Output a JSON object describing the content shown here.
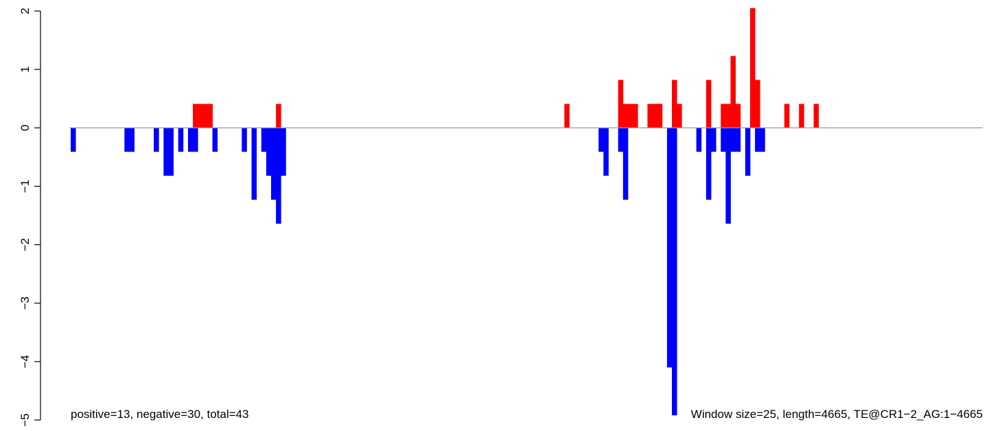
{
  "chart_data": {
    "type": "bar",
    "title": "",
    "xlabel": "",
    "ylabel": "",
    "ylim": [
      -5,
      2
    ],
    "y_ticks": [
      "2",
      "1",
      "0",
      "−1",
      "−2",
      "−3",
      "−4",
      "−5"
    ],
    "y_tick_values": [
      2,
      1,
      0,
      -1,
      -2,
      -3,
      -4,
      -5
    ],
    "x_axis_visible": false,
    "baseline": 0,
    "window_size_bp": 25,
    "sequence_length_bp": 4665,
    "colors": {
      "positive": "#ff0000",
      "negative": "#0000ff",
      "baseline": "#999999"
    },
    "series": [
      {
        "name": "positive",
        "color": "#ff0000",
        "points": [
          {
            "x": 625,
            "y": 0.41
          },
          {
            "x": 650,
            "y": 0.41
          },
          {
            "x": 675,
            "y": 0.41
          },
          {
            "x": 700,
            "y": 0.41
          },
          {
            "x": 1050,
            "y": 0.41
          },
          {
            "x": 2525,
            "y": 0.41
          },
          {
            "x": 2800,
            "y": 0.82
          },
          {
            "x": 2825,
            "y": 0.41
          },
          {
            "x": 2850,
            "y": 0.41
          },
          {
            "x": 2875,
            "y": 0.41
          },
          {
            "x": 2950,
            "y": 0.41
          },
          {
            "x": 2975,
            "y": 0.41
          },
          {
            "x": 3000,
            "y": 0.41
          },
          {
            "x": 3075,
            "y": 0.82
          },
          {
            "x": 3100,
            "y": 0.41
          },
          {
            "x": 3250,
            "y": 0.82
          },
          {
            "x": 3325,
            "y": 0.41
          },
          {
            "x": 3350,
            "y": 0.41
          },
          {
            "x": 3375,
            "y": 1.23
          },
          {
            "x": 3400,
            "y": 0.41
          },
          {
            "x": 3475,
            "y": 2.05
          },
          {
            "x": 3500,
            "y": 0.82
          },
          {
            "x": 3650,
            "y": 0.41
          },
          {
            "x": 3725,
            "y": 0.41
          },
          {
            "x": 3800,
            "y": 0.41
          }
        ]
      },
      {
        "name": "negative",
        "color": "#0000ff",
        "points": [
          {
            "x": 0,
            "y": -0.41
          },
          {
            "x": 275,
            "y": -0.41
          },
          {
            "x": 300,
            "y": -0.41
          },
          {
            "x": 425,
            "y": -0.41
          },
          {
            "x": 475,
            "y": -0.82
          },
          {
            "x": 500,
            "y": -0.82
          },
          {
            "x": 550,
            "y": -0.41
          },
          {
            "x": 600,
            "y": -0.41
          },
          {
            "x": 625,
            "y": -0.41
          },
          {
            "x": 725,
            "y": -0.41
          },
          {
            "x": 875,
            "y": -0.41
          },
          {
            "x": 925,
            "y": -1.23
          },
          {
            "x": 975,
            "y": -0.41
          },
          {
            "x": 1000,
            "y": -0.82
          },
          {
            "x": 1025,
            "y": -1.23
          },
          {
            "x": 1050,
            "y": -1.64
          },
          {
            "x": 1075,
            "y": -0.82
          },
          {
            "x": 2700,
            "y": -0.41
          },
          {
            "x": 2725,
            "y": -0.82
          },
          {
            "x": 2800,
            "y": -0.41
          },
          {
            "x": 2825,
            "y": -1.23
          },
          {
            "x": 3050,
            "y": -4.1
          },
          {
            "x": 3075,
            "y": -4.92
          },
          {
            "x": 3200,
            "y": -0.41
          },
          {
            "x": 3250,
            "y": -1.23
          },
          {
            "x": 3275,
            "y": -0.41
          },
          {
            "x": 3325,
            "y": -0.41
          },
          {
            "x": 3350,
            "y": -1.64
          },
          {
            "x": 3375,
            "y": -0.41
          },
          {
            "x": 3400,
            "y": -0.41
          },
          {
            "x": 3450,
            "y": -0.82
          },
          {
            "x": 3500,
            "y": -0.41
          },
          {
            "x": 3525,
            "y": -0.41
          }
        ]
      }
    ]
  },
  "annotations": {
    "counts": "positive=13, negative=30, total=43",
    "info": "Window size=25, length=4665, TE@CR1−2_AG:1−4665"
  }
}
